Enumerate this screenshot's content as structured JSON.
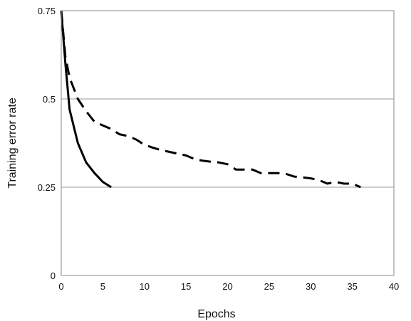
{
  "chart_data": {
    "type": "line",
    "title": "",
    "xlabel": "Epochs",
    "ylabel": "Training error rate",
    "xlim": [
      0,
      40
    ],
    "ylim": [
      0,
      0.75
    ],
    "x_ticks": [
      "0",
      "5",
      "10",
      "15",
      "20",
      "25",
      "30",
      "35",
      "40"
    ],
    "y_ticks": [
      "0",
      "0.25",
      "0.5",
      "0.75"
    ],
    "x_tick_values": [
      0,
      5,
      10,
      15,
      20,
      25,
      30,
      35,
      40
    ],
    "y_tick_values": [
      0,
      0.25,
      0.5,
      0.75
    ],
    "grid": "horizontal",
    "series": [
      {
        "style": "solid",
        "color": "#000000",
        "x": [
          0,
          0.5,
          1,
          2,
          3,
          4,
          5,
          6
        ],
        "y": [
          0.75,
          0.6,
          0.47,
          0.375,
          0.32,
          0.29,
          0.265,
          0.25
        ]
      },
      {
        "style": "dashed",
        "color": "#000000",
        "x": [
          0,
          0.5,
          1,
          2,
          3,
          4,
          5,
          6,
          7,
          8,
          9,
          10,
          11,
          12,
          13,
          14,
          15,
          16,
          17,
          18,
          19,
          20,
          21,
          22,
          23,
          24,
          25,
          26,
          27,
          28,
          29,
          30,
          31,
          32,
          33,
          34,
          35,
          36
        ],
        "y": [
          0.75,
          0.62,
          0.56,
          0.5,
          0.465,
          0.435,
          0.425,
          0.415,
          0.4,
          0.395,
          0.385,
          0.37,
          0.362,
          0.355,
          0.35,
          0.345,
          0.34,
          0.33,
          0.325,
          0.322,
          0.32,
          0.315,
          0.3,
          0.3,
          0.3,
          0.29,
          0.29,
          0.29,
          0.288,
          0.28,
          0.278,
          0.275,
          0.27,
          0.26,
          0.265,
          0.26,
          0.26,
          0.25
        ]
      }
    ]
  }
}
